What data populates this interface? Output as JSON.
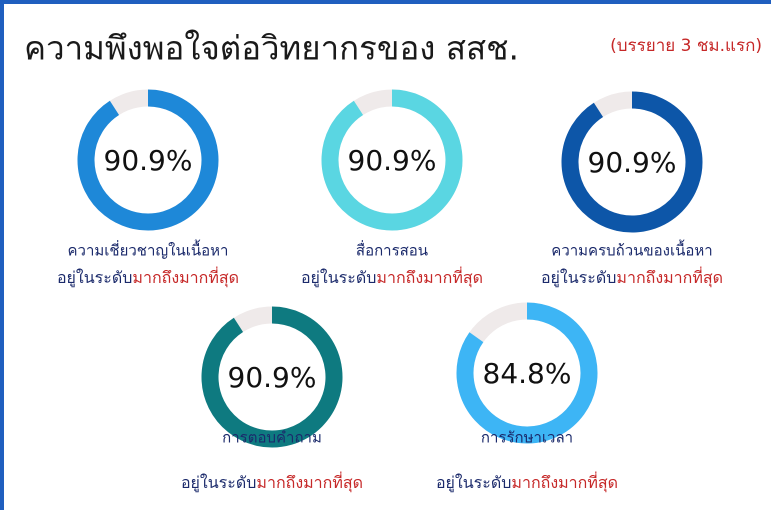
{
  "title": "ความพึงพอใจต่อวิทยากรของ สสช.",
  "subtitle": "(บรรยาย 3 ชม.แรก)",
  "gauges": [
    {
      "name": "ความเชี่ยวชาญในเนื้อหา",
      "value": 90.9,
      "value_label": "90.9%",
      "level_prefix": "อยู่ในระดับ",
      "level": "มากถึงมากที่สุด",
      "color": "#1e88d8"
    },
    {
      "name": "สื่อการสอน",
      "value": 90.9,
      "value_label": "90.9%",
      "level_prefix": "อยู่ในระดับ",
      "level": "มากถึงมากที่สุด",
      "color": "#5ad6e2"
    },
    {
      "name": "ความครบถ้วนของเนื้อหา",
      "value": 90.9,
      "value_label": "90.9%",
      "level_prefix": "อยู่ในระดับ",
      "level": "มากถึงมากที่สุด",
      "color": "#0d56a8"
    },
    {
      "name": "การตอบคำถาม",
      "value": 90.9,
      "value_label": "90.9%",
      "level_prefix": "อยู่ในระดับ",
      "level": "มากถึงมากที่สุด",
      "color": "#0e7a80"
    },
    {
      "name": "การรักษาเวลา",
      "value": 84.8,
      "value_label": "84.8%",
      "level_prefix": "อยู่ในระดับ",
      "level": "มากถึงมากที่สุด",
      "color": "#3db5f5"
    }
  ]
}
